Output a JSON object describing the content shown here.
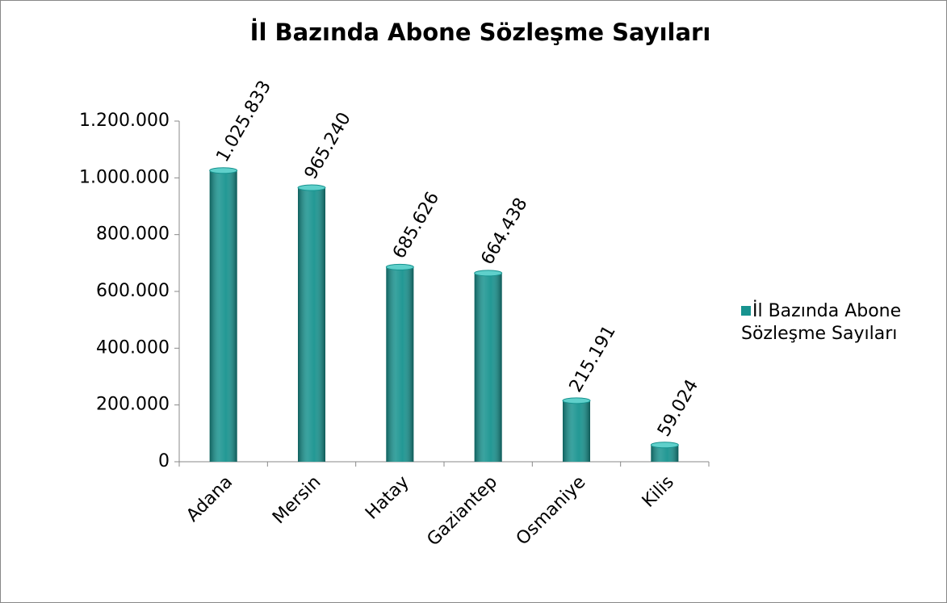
{
  "chart_data": {
    "type": "bar",
    "title": "İl Bazında Abone Sözleşme Sayıları",
    "categories": [
      "Adana",
      "Mersin",
      "Hatay",
      "Gaziantep",
      "Osmaniye",
      "Kilis"
    ],
    "series": [
      {
        "name": "İl Bazında Abone Sözleşme Sayıları",
        "color": "#17938f",
        "values": [
          1025833,
          965240,
          685626,
          664438,
          215191,
          59024
        ],
        "value_labels": [
          "1.025.833",
          "965.240",
          "685.626",
          "664.438",
          "215.191",
          "59.024"
        ]
      }
    ],
    "ylim": [
      0,
      1200000
    ],
    "yticks": [
      0,
      {
        "value": 200000,
        "label": "200.000"
      },
      {
        "value": 400000,
        "label": "400.000"
      },
      {
        "value": 600000,
        "label": "600.000"
      },
      {
        "value": 800000,
        "label": "800.000"
      },
      {
        "value": 1000000,
        "label": "1.000.000"
      },
      {
        "value": 1200000,
        "label": "1.200.000"
      }
    ],
    "legend": "right"
  }
}
